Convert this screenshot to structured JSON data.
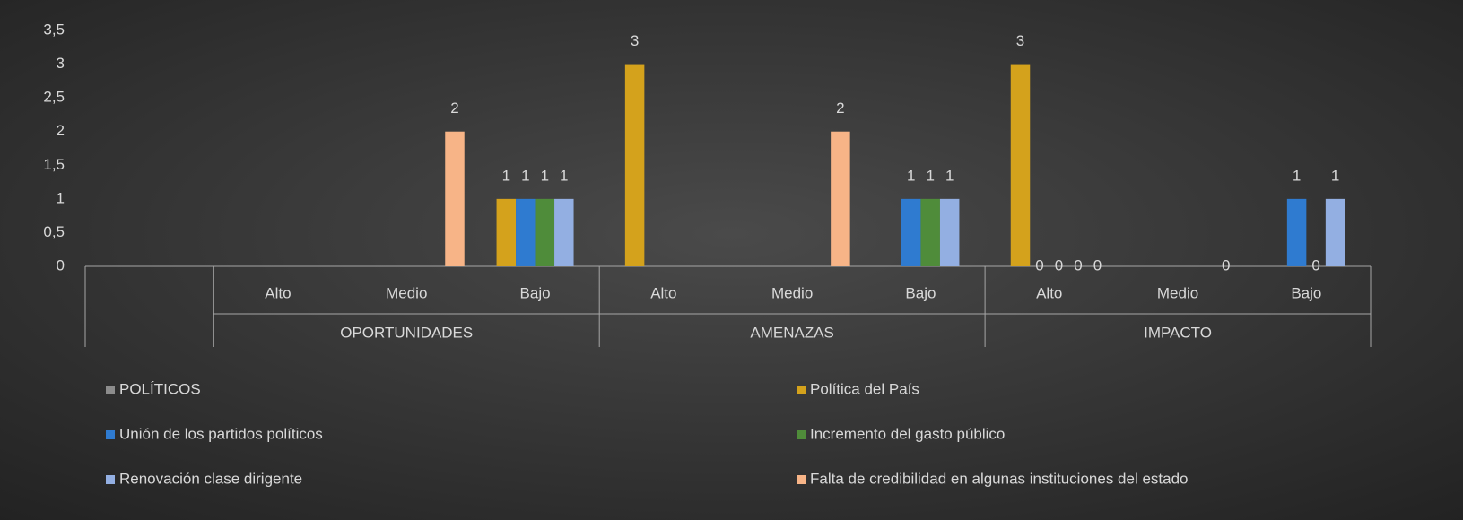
{
  "chart_data": {
    "type": "bar",
    "categories": [
      null,
      "Alto",
      "Medio",
      "Bajo",
      "Alto",
      "Medio",
      "Bajo",
      "Alto",
      "Medio",
      "Bajo"
    ],
    "category_groups": [
      null,
      "OPORTUNIDADES",
      "OPORTUNIDADES",
      "OPORTUNIDADES",
      "AMENAZAS",
      "AMENAZAS",
      "AMENAZAS",
      "IMPACTO",
      "IMPACTO",
      "IMPACTO"
    ],
    "series": [
      {
        "name": "POLÍTICOS",
        "color": "#8c8c8c",
        "values": [
          null,
          null,
          null,
          null,
          null,
          null,
          null,
          null,
          null,
          null
        ]
      },
      {
        "name": "Política del País",
        "color": "#d4a21c",
        "values": [
          null,
          null,
          null,
          1,
          3,
          null,
          null,
          3,
          null,
          null
        ]
      },
      {
        "name": "Unión de los partidos políticos",
        "color": "#2f7bd0",
        "values": [
          null,
          null,
          null,
          1,
          null,
          null,
          1,
          0,
          null,
          1
        ]
      },
      {
        "name": "Incremento del gasto público",
        "color": "#4f8c3a",
        "values": [
          null,
          null,
          null,
          1,
          null,
          null,
          1,
          0,
          null,
          0
        ]
      },
      {
        "name": "Renovación clase dirigente",
        "color": "#93afe2",
        "values": [
          null,
          null,
          null,
          1,
          null,
          null,
          1,
          0,
          null,
          1
        ]
      },
      {
        "name": "Falta de credibilidad en algunas instituciones del estado",
        "color": "#f7b487",
        "values": [
          null,
          null,
          2,
          null,
          null,
          2,
          null,
          0,
          0,
          null
        ]
      }
    ],
    "ylim": [
      0,
      3.5
    ],
    "yticks": [
      0,
      {
        "value": 0.5,
        "label": "0,5"
      },
      1,
      {
        "value": 1.5,
        "label": "1,5"
      },
      2,
      {
        "value": 2.5,
        "label": "2,5"
      },
      3,
      {
        "value": 3.5,
        "label": "3,5"
      }
    ],
    "grid": false,
    "legend": "bottom"
  }
}
